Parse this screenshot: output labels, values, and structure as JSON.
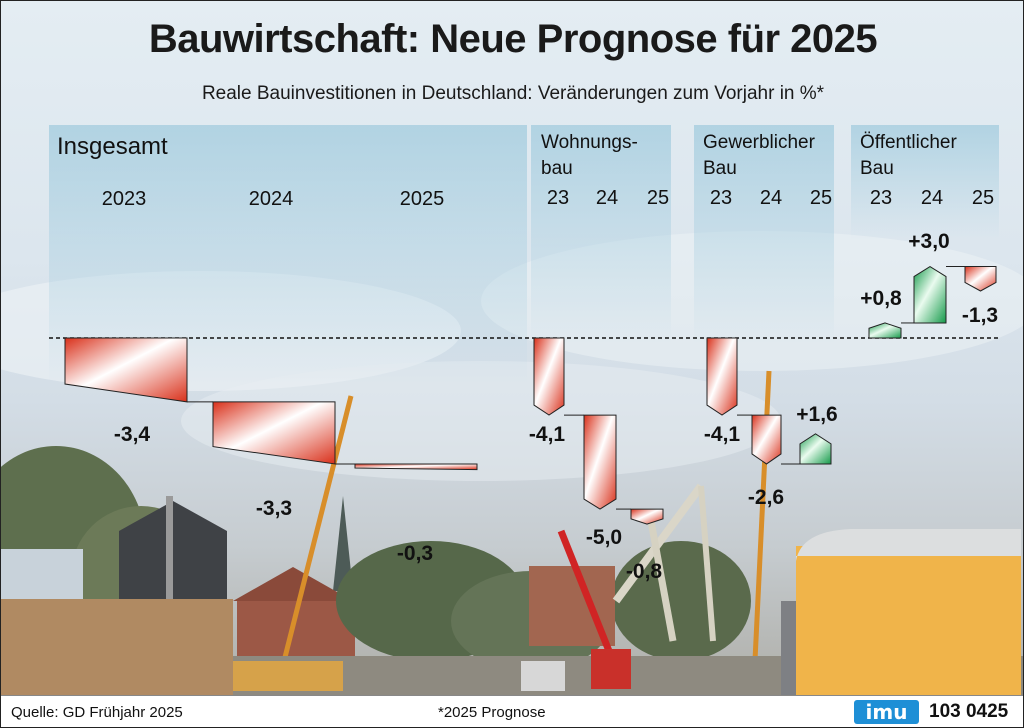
{
  "header": {
    "title": "Bauwirtschaft: Neue Prognose für 2025",
    "subtitle": "Reale Bauinvestitionen in Deutschland: Veränderungen zum Vorjahr in %*"
  },
  "footer": {
    "source": "Quelle: GD Frühjahr 2025",
    "note": "*2025 Prognose",
    "logo": "imu",
    "code": "103 0425"
  },
  "colors": {
    "negative": "#d9301a",
    "positive": "#159a4a",
    "panel": "#a9cfe0"
  },
  "chart_data": [
    {
      "type": "waterfall",
      "panel": "Insgesamt",
      "categories": [
        "2023",
        "2024",
        "2025"
      ],
      "values": [
        -3.4,
        -3.3,
        -0.3
      ],
      "labels": [
        "-3,4",
        "-3,3",
        "-0,3"
      ]
    },
    {
      "type": "waterfall",
      "panel": "Wohnungs- bau",
      "panel_lines": [
        "Wohnungs-",
        "bau"
      ],
      "categories": [
        "23",
        "24",
        "25"
      ],
      "values": [
        -4.1,
        -5.0,
        -0.8
      ],
      "labels": [
        "-4,1",
        "-5,0",
        "-0,8"
      ]
    },
    {
      "type": "waterfall",
      "panel": "Gewerblicher Bau",
      "panel_lines": [
        "Gewerblicher",
        "Bau"
      ],
      "categories": [
        "23",
        "24",
        "25"
      ],
      "values": [
        -4.1,
        -2.6,
        1.6
      ],
      "labels": [
        "-4,1",
        "-2,6",
        "+1,6"
      ]
    },
    {
      "type": "waterfall",
      "panel": "Öffentlicher Bau",
      "panel_lines": [
        "Öffentlicher",
        "Bau"
      ],
      "categories": [
        "23",
        "24",
        "25"
      ],
      "values": [
        0.8,
        3.0,
        -1.3
      ],
      "labels": [
        "+0,8",
        "+3,0",
        "-1,3"
      ]
    }
  ]
}
